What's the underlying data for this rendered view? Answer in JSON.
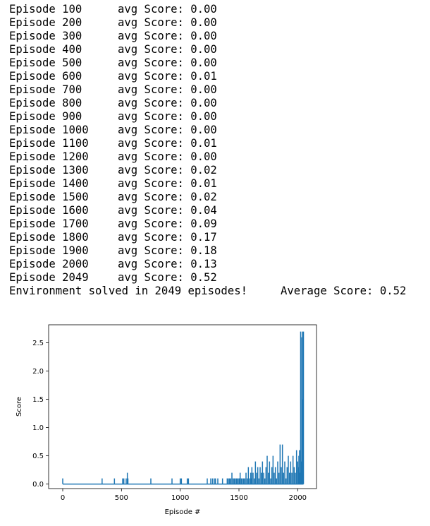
{
  "log": {
    "lines": [
      {
        "episode": "Episode 100",
        "score": "avg Score: 0.00"
      },
      {
        "episode": "Episode 200",
        "score": "avg Score: 0.00"
      },
      {
        "episode": "Episode 300",
        "score": "avg Score: 0.00"
      },
      {
        "episode": "Episode 400",
        "score": "avg Score: 0.00"
      },
      {
        "episode": "Episode 500",
        "score": "avg Score: 0.00"
      },
      {
        "episode": "Episode 600",
        "score": "avg Score: 0.01"
      },
      {
        "episode": "Episode 700",
        "score": "avg Score: 0.00"
      },
      {
        "episode": "Episode 800",
        "score": "avg Score: 0.00"
      },
      {
        "episode": "Episode 900",
        "score": "avg Score: 0.00"
      },
      {
        "episode": "Episode 1000",
        "score": "avg Score: 0.00"
      },
      {
        "episode": "Episode 1100",
        "score": "avg Score: 0.01"
      },
      {
        "episode": "Episode 1200",
        "score": "avg Score: 0.00"
      },
      {
        "episode": "Episode 1300",
        "score": "avg Score: 0.02"
      },
      {
        "episode": "Episode 1400",
        "score": "avg Score: 0.01"
      },
      {
        "episode": "Episode 1500",
        "score": "avg Score: 0.02"
      },
      {
        "episode": "Episode 1600",
        "score": "avg Score: 0.04"
      },
      {
        "episode": "Episode 1700",
        "score": "avg Score: 0.09"
      },
      {
        "episode": "Episode 1800",
        "score": "avg Score: 0.17"
      },
      {
        "episode": "Episode 1900",
        "score": "avg Score: 0.18"
      },
      {
        "episode": "Episode 2000",
        "score": "avg Score: 0.13"
      },
      {
        "episode": "Episode 2049",
        "score": "avg Score: 0.52"
      }
    ],
    "solved": {
      "message": "Environment solved in 2049 episodes!",
      "average": "Average Score: 0.52"
    }
  },
  "chart_data": {
    "type": "line",
    "title": "",
    "xlabel": "Episode #",
    "ylabel": "Score",
    "xlim": [
      -120,
      2160
    ],
    "ylim": [
      -0.08,
      2.82
    ],
    "xticks": [
      0,
      500,
      1000,
      1500,
      2000
    ],
    "xtick_labels": [
      "0",
      "500",
      "1000",
      "1500",
      "2000"
    ],
    "yticks": [
      0.0,
      0.5,
      1.0,
      1.5,
      2.0,
      2.5
    ],
    "ytick_labels": [
      "0.0",
      "0.5",
      "1.0",
      "1.5",
      "2.0",
      "2.5"
    ],
    "grid": false,
    "line_color": "#1f77b4",
    "series": [
      {
        "baseline": 0.0,
        "spikes": [
          [
            0,
            0.1
          ],
          [
            335,
            0.1
          ],
          [
            440,
            0.1
          ],
          [
            510,
            0.1
          ],
          [
            520,
            0.1
          ],
          [
            540,
            0.1
          ],
          [
            550,
            0.2
          ],
          [
            555,
            0.1
          ],
          [
            750,
            0.1
          ],
          [
            930,
            0.1
          ],
          [
            1000,
            0.1
          ],
          [
            1010,
            0.1
          ],
          [
            1060,
            0.1
          ],
          [
            1070,
            0.1
          ],
          [
            1230,
            0.1
          ],
          [
            1260,
            0.1
          ],
          [
            1275,
            0.1
          ],
          [
            1290,
            0.1
          ],
          [
            1300,
            0.1
          ],
          [
            1320,
            0.1
          ],
          [
            1360,
            0.1
          ],
          [
            1400,
            0.1
          ],
          [
            1410,
            0.1
          ],
          [
            1420,
            0.1
          ],
          [
            1430,
            0.1
          ],
          [
            1440,
            0.2
          ],
          [
            1450,
            0.1
          ],
          [
            1460,
            0.1
          ],
          [
            1470,
            0.1
          ],
          [
            1480,
            0.1
          ],
          [
            1490,
            0.1
          ],
          [
            1500,
            0.1
          ],
          [
            1505,
            0.1
          ],
          [
            1510,
            0.2
          ],
          [
            1520,
            0.1
          ],
          [
            1530,
            0.1
          ],
          [
            1540,
            0.1
          ],
          [
            1550,
            0.1
          ],
          [
            1560,
            0.2
          ],
          [
            1570,
            0.1
          ],
          [
            1580,
            0.3
          ],
          [
            1590,
            0.1
          ],
          [
            1600,
            0.2
          ],
          [
            1605,
            0.1
          ],
          [
            1610,
            0.3
          ],
          [
            1620,
            0.2
          ],
          [
            1630,
            0.1
          ],
          [
            1640,
            0.4
          ],
          [
            1650,
            0.2
          ],
          [
            1660,
            0.3
          ],
          [
            1670,
            0.1
          ],
          [
            1680,
            0.3
          ],
          [
            1690,
            0.2
          ],
          [
            1700,
            0.4
          ],
          [
            1710,
            0.2
          ],
          [
            1720,
            0.1
          ],
          [
            1730,
            0.3
          ],
          [
            1740,
            0.5
          ],
          [
            1750,
            0.2
          ],
          [
            1760,
            0.4
          ],
          [
            1770,
            0.1
          ],
          [
            1780,
            0.3
          ],
          [
            1790,
            0.5
          ],
          [
            1800,
            0.2
          ],
          [
            1810,
            0.3
          ],
          [
            1820,
            0.1
          ],
          [
            1830,
            0.4
          ],
          [
            1840,
            0.2
          ],
          [
            1850,
            0.7
          ],
          [
            1860,
            0.3
          ],
          [
            1870,
            0.7
          ],
          [
            1880,
            0.2
          ],
          [
            1890,
            0.4
          ],
          [
            1900,
            0.1
          ],
          [
            1910,
            0.3
          ],
          [
            1920,
            0.5
          ],
          [
            1930,
            0.2
          ],
          [
            1940,
            0.4
          ],
          [
            1950,
            0.2
          ],
          [
            1960,
            0.5
          ],
          [
            1970,
            0.3
          ],
          [
            1980,
            0.2
          ],
          [
            1990,
            0.6
          ],
          [
            2000,
            0.4
          ],
          [
            2005,
            0.3
          ],
          [
            2010,
            0.5
          ],
          [
            2015,
            0.6
          ],
          [
            2020,
            0.2
          ],
          [
            2025,
            2.7
          ],
          [
            2030,
            0.4
          ],
          [
            2035,
            2.6
          ],
          [
            2040,
            2.7
          ],
          [
            2045,
            1.5
          ],
          [
            2049,
            2.7
          ]
        ]
      }
    ]
  }
}
